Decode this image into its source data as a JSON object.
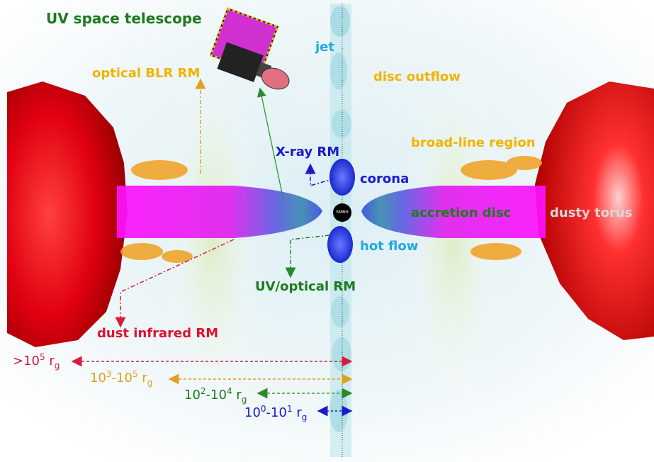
{
  "labels": {
    "uv_telescope": "UV space telescope",
    "jet": "jet",
    "optical_blr_rm": "optical BLR RM",
    "disc_outflow": "disc outflow",
    "xray_rm": "X-ray RM",
    "broad_line_region": "broad-line region",
    "corona": "corona",
    "accretion_disc": "accretion disc",
    "dusty_torus": "dusty torus",
    "hot_flow": "hot flow",
    "uv_optical_rm": "UV/optical RM",
    "dust_infrared_rm": "dust infrared RM",
    "smbh": "SMBH"
  },
  "scales": [
    {
      "base": ">10",
      "exp": "5",
      "unit": "r",
      "sub": "g",
      "color": "#d81b3c"
    },
    {
      "base": "10",
      "exp": "3",
      "mid": "-10",
      "exp2": "5",
      "unit": "r",
      "sub": "g",
      "color": "#e0a020"
    },
    {
      "base": "10",
      "exp": "2",
      "mid": "-10",
      "exp2": "4",
      "unit": "r",
      "sub": "g",
      "color": "#1e7a1e"
    },
    {
      "base": "10",
      "exp": "0",
      "mid": "-10",
      "exp2": "1",
      "unit": "r",
      "sub": "g",
      "color": "#1a1acc"
    }
  ],
  "colors": {
    "green_label": "#1e7a1e",
    "gold_label": "#f0b400",
    "blue_label": "#1a1acc",
    "cyan_label": "#22a8e0",
    "red_label": "#e01030",
    "torus_label": "#d8d8d8"
  },
  "icons": [
    "satellite-icon"
  ]
}
